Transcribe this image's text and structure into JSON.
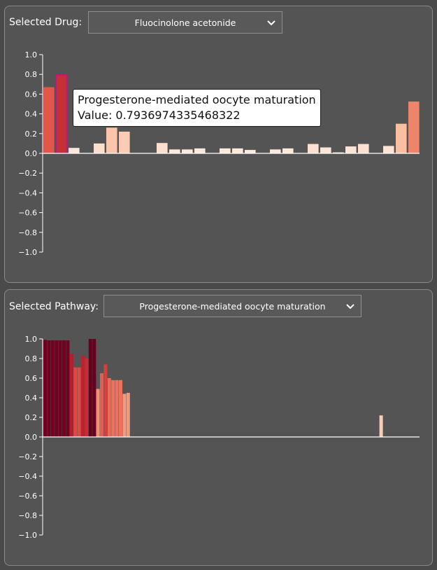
{
  "drug_panel": {
    "label": "Selected Drug:",
    "selected": "Fluocinolone acetonide"
  },
  "pathway_panel": {
    "label": "Selected Pathway:",
    "selected": "Progesterone-mediated oocyte maturation"
  },
  "tooltip": {
    "title": "Progesterone-mediated oocyte maturation",
    "value_text": "Value: 0.7936974335468322"
  },
  "icons": {
    "dropdown": "chevron-down-icon"
  },
  "chart_data": [
    {
      "type": "bar",
      "name": "drug-chart",
      "ylim": [
        -1.0,
        1.0
      ],
      "yticks": [
        "1.0",
        "0.8",
        "0.6",
        "0.4",
        "0.2",
        "0.0",
        "−0.2",
        "−0.4",
        "−0.6",
        "−0.8",
        "−1.0"
      ],
      "highlighted_index": 1,
      "values": [
        0.67,
        0.7937,
        0.055,
        null,
        0.1,
        0.26,
        0.22,
        null,
        null,
        0.105,
        0.04,
        0.04,
        0.05,
        null,
        0.05,
        0.05,
        0.035,
        null,
        0.04,
        0.05,
        null,
        0.095,
        0.06,
        0.01,
        0.07,
        0.095,
        null,
        0.075,
        0.3,
        0.525
      ]
    },
    {
      "type": "bar",
      "name": "pathway-chart",
      "ylim": [
        -1.0,
        1.0
      ],
      "yticks": [
        "1.0",
        "0.8",
        "0.6",
        "0.4",
        "0.2",
        "0.0",
        "−0.2",
        "−0.4",
        "−0.6",
        "−0.8",
        "−1.0"
      ],
      "values": [
        0.99,
        0.985,
        0.985,
        0.985,
        0.985,
        0.985,
        0.985,
        0.85,
        0.71,
        0.71,
        0.83,
        0.8,
        1.0,
        1.0,
        0.49,
        0.65,
        0.74,
        0.6,
        0.58,
        0.58,
        0.58,
        0.44,
        0.45,
        null,
        null,
        null,
        null,
        null,
        null,
        null,
        null,
        null,
        null,
        null,
        null,
        null,
        null,
        null,
        null,
        null,
        null,
        null,
        null,
        null,
        null,
        null,
        null,
        null,
        null,
        null,
        null,
        null,
        null,
        null,
        null,
        null,
        null,
        null,
        null,
        null,
        null,
        null,
        null,
        null,
        null,
        null,
        null,
        null,
        null,
        null,
        null,
        null,
        null,
        null,
        null,
        null,
        null,
        null,
        null,
        null,
        null,
        null,
        null,
        null,
        null,
        null,
        null,
        null,
        null,
        0.22
      ]
    }
  ]
}
